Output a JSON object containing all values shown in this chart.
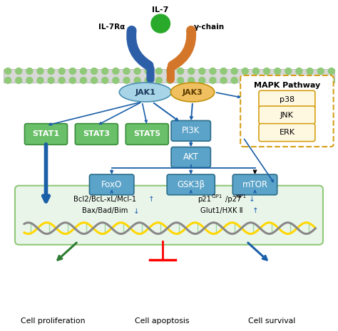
{
  "il7_label": "IL-7",
  "receptor_left_label": "IL-7Rα",
  "receptor_right_label": "γ-chain",
  "jak1_label": "JAK1",
  "jak3_label": "JAK3",
  "jak1_color": "#a8d4e8",
  "jak3_color": "#f0c060",
  "stat_boxes": [
    "STAT1",
    "STAT3",
    "STAT5"
  ],
  "stat_color": "#6abf69",
  "stat_border": "#3a8c3a",
  "pi3k_label": "PI3K",
  "akt_label": "AKT",
  "foxo_label": "FoxO",
  "gsk3b_label": "GSK3β",
  "mtor_label": "mTOR",
  "blue_box_color": "#5ba3c9",
  "blue_box_border": "#2c6e8a",
  "mapk_title": "MAPK Pathway",
  "mapk_items": [
    "p38",
    "JNK",
    "ERK"
  ],
  "mapk_item_color": "#fff8e1",
  "mapk_item_border": "#d4a017",
  "mapk_box_border": "#d4a017",
  "green_box_color": "#eaf5ea",
  "green_box_border": "#90c978",
  "arrow_color": "#1a5fa8",
  "text1_line1": "Bcl2/BcL-xL/Mcl-1",
  "text1_line2": "Bax/Bad/Bim",
  "text2_line1": "p21",
  "text2_line1_sup1": "CIP1",
  "text2_line1_mid": "/p27",
  "text2_line1_sup2": "KIP1",
  "text2_line2": "Glut1/HXK Ⅱ",
  "cell_prolif": "Cell proliferation",
  "cell_apop": "Cell apoptosis",
  "cell_surv": "Cell survival",
  "cell_prolif_color": "#3a8c3a",
  "cell_surv_color": "#1a5fa8",
  "membrane_circle_color": "#90c978",
  "membrane_bg": "#d8d8d8"
}
